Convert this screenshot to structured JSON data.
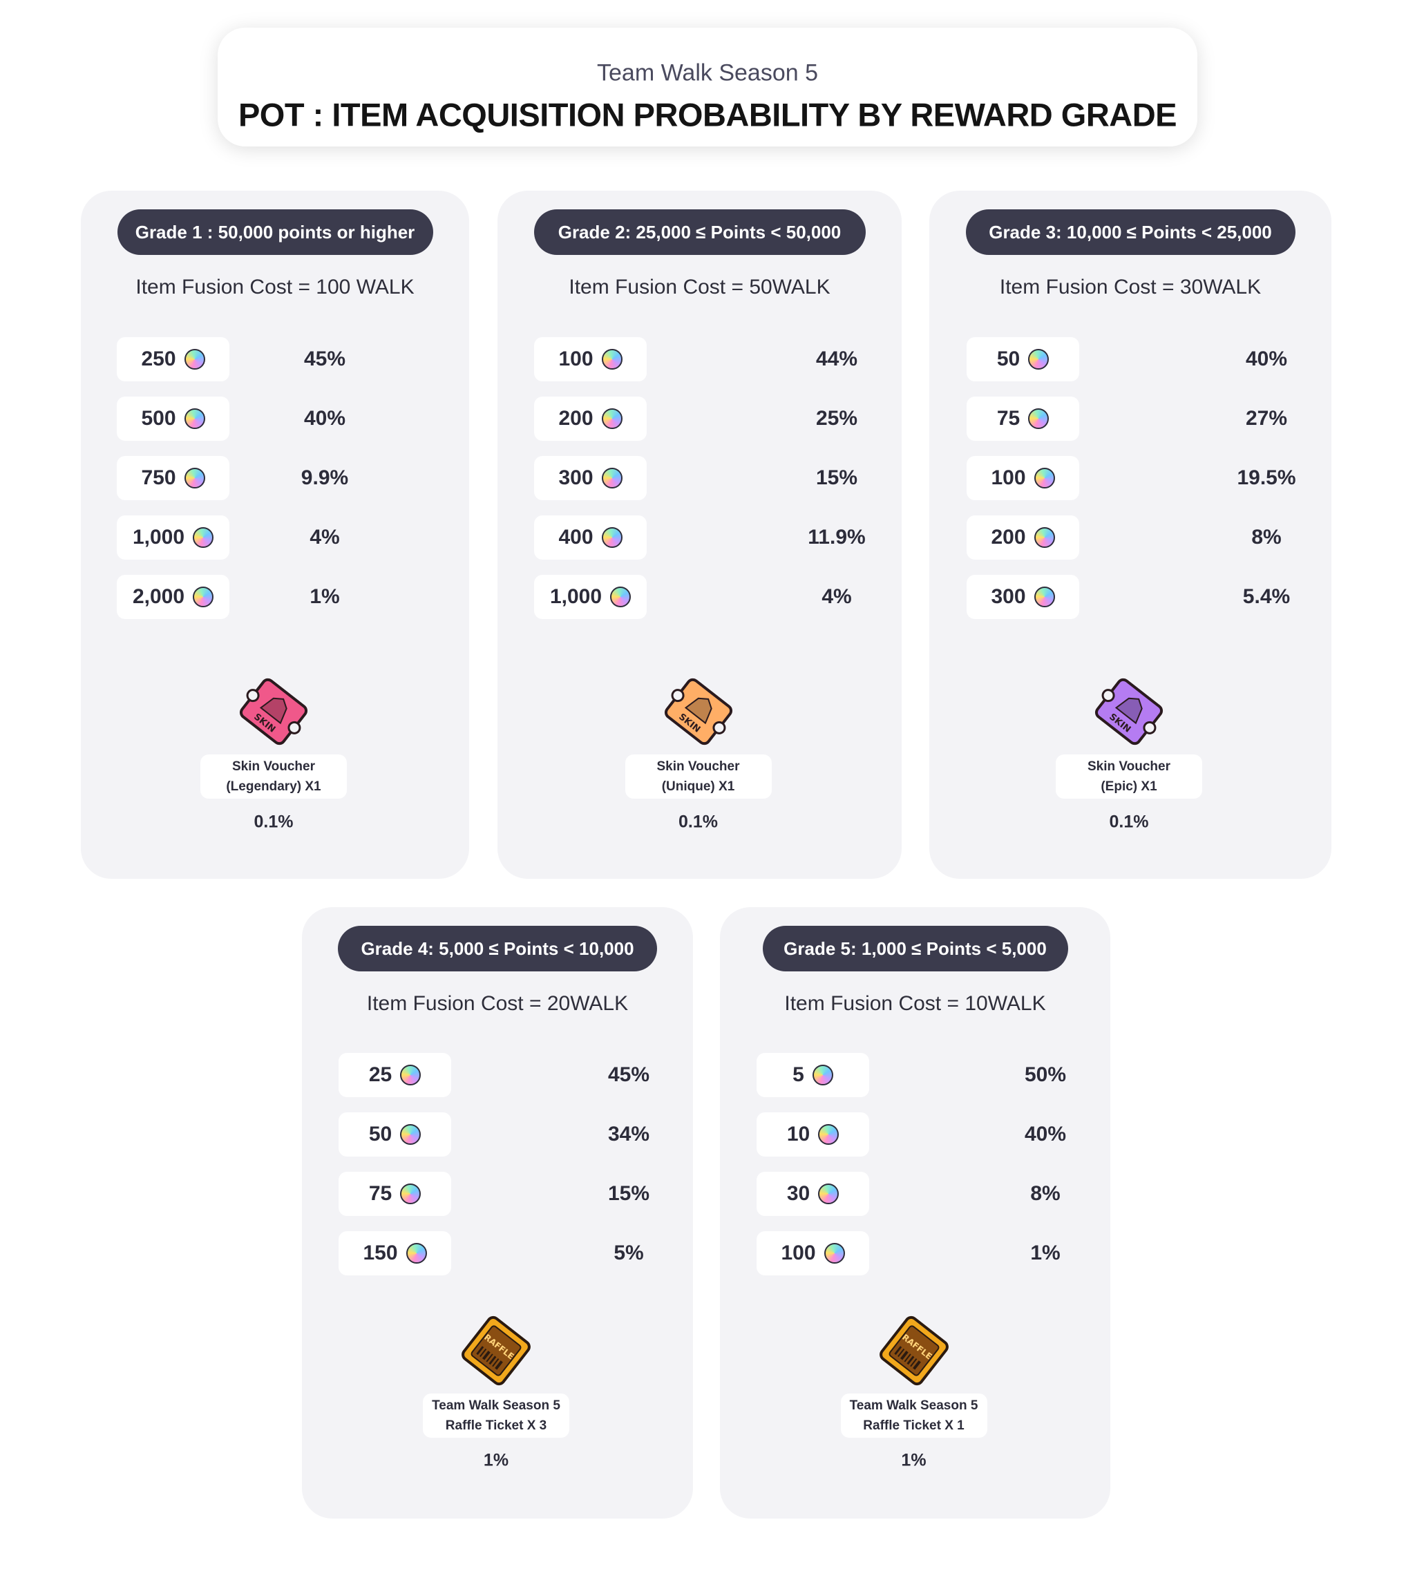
{
  "header": {
    "subtitle": "Team Walk Season 5",
    "title": "POT :  ITEM ACQUISITION PROBABILITY BY REWARD GRADE"
  },
  "grades": [
    {
      "label": "Grade 1 : 50,000 points or higher",
      "cost": "Item Fusion Cost = 100 WALK",
      "rows": [
        {
          "amount": "250",
          "pct": "45%"
        },
        {
          "amount": "500",
          "pct": "40%"
        },
        {
          "amount": "750",
          "pct": "9.9%"
        },
        {
          "amount": "1,000",
          "pct": "4%"
        },
        {
          "amount": "2,000",
          "pct": "1%"
        }
      ],
      "special": {
        "line1": "Skin Voucher",
        "line2": "(Legendary) X1",
        "pct": "0.1%",
        "icon": "skin-voucher-legendary-icon",
        "color": "#f0588a",
        "text": "SKIN"
      }
    },
    {
      "label": "Grade 2: 25,000 ≤ Points < 50,000",
      "cost": "Item Fusion Cost = 50WALK",
      "rows": [
        {
          "amount": "100",
          "pct": "44%"
        },
        {
          "amount": "200",
          "pct": "25%"
        },
        {
          "amount": "300",
          "pct": "15%"
        },
        {
          "amount": "400",
          "pct": "11.9%"
        },
        {
          "amount": "1,000",
          "pct": "4%"
        }
      ],
      "special": {
        "line1": "Skin Voucher",
        "line2": "(Unique) X1",
        "pct": "0.1%",
        "icon": "skin-voucher-unique-icon",
        "color": "#ffae66",
        "text": "SKIN"
      }
    },
    {
      "label": "Grade 3: 10,000 ≤ Points < 25,000",
      "cost": "Item Fusion Cost = 30WALK",
      "rows": [
        {
          "amount": "50",
          "pct": "40%"
        },
        {
          "amount": "75",
          "pct": "27%"
        },
        {
          "amount": "100",
          "pct": "19.5%"
        },
        {
          "amount": "200",
          "pct": "8%"
        },
        {
          "amount": "300",
          "pct": "5.4%"
        }
      ],
      "special": {
        "line1": "Skin Voucher",
        "line2": "(Epic) X1",
        "pct": "0.1%",
        "icon": "skin-voucher-epic-icon",
        "color": "#b57cf2",
        "text": "SKIN"
      }
    },
    {
      "label": "Grade 4: 5,000 ≤ Points < 10,000",
      "cost": "Item Fusion Cost = 20WALK",
      "rows": [
        {
          "amount": "25",
          "pct": "45%"
        },
        {
          "amount": "50",
          "pct": "34%"
        },
        {
          "amount": "75",
          "pct": "15%"
        },
        {
          "amount": "150",
          "pct": "5%"
        }
      ],
      "special": {
        "line1": "Team Walk Season 5",
        "line2": "Raffle Ticket X 3",
        "pct": "1%",
        "icon": "raffle-ticket-icon",
        "color": "#f2a81c",
        "text": "RAFFLE"
      }
    },
    {
      "label": "Grade 5: 1,000 ≤ Points < 5,000",
      "cost": "Item Fusion Cost = 10WALK",
      "rows": [
        {
          "amount": "5",
          "pct": "50%"
        },
        {
          "amount": "10",
          "pct": "40%"
        },
        {
          "amount": "30",
          "pct": "8%"
        },
        {
          "amount": "100",
          "pct": "1%"
        }
      ],
      "special": {
        "line1": "Team Walk Season 5",
        "line2": "Raffle Ticket X 1",
        "pct": "1%",
        "icon": "raffle-ticket-icon",
        "color": "#f2a81c",
        "text": "RAFFLE"
      }
    }
  ]
}
